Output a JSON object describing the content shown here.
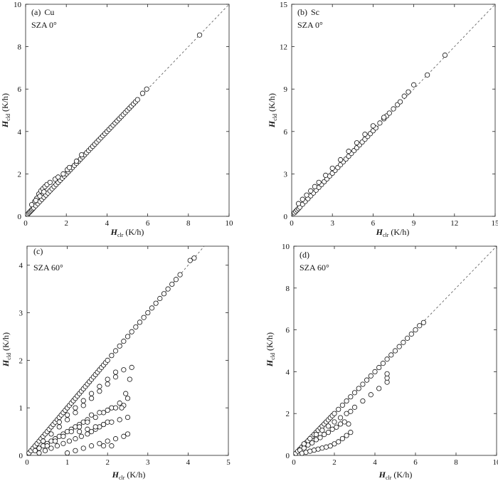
{
  "figure": {
    "panels": [
      {
        "id": "a",
        "label": "(a)",
        "cloud": "Cu",
        "sza_text": "SZA  0°",
        "xlabel": {
          "sym": "H",
          "sub": "clr",
          "unit": " (K/h)"
        },
        "ylabel": {
          "sym": "H",
          "sub": "cld",
          "unit": " (K/h)"
        }
      },
      {
        "id": "b",
        "label": "(b)",
        "cloud": "Sc",
        "sza_text": "SZA  0°",
        "xlabel": {
          "sym": "H",
          "sub": "clr",
          "unit": " (K/h)"
        },
        "ylabel": {
          "sym": "H",
          "sub": "cld",
          "unit": " (K/h)"
        }
      },
      {
        "id": "c",
        "label": "(c)",
        "cloud": "",
        "sza_text": "SZA  60°",
        "xlabel": {
          "sym": "H",
          "sub": "clr",
          "unit": " (K/h)"
        },
        "ylabel": {
          "sym": "H",
          "sub": "cld",
          "unit": " (K/h)"
        }
      },
      {
        "id": "d",
        "label": "(d)",
        "cloud": "",
        "sza_text": "SZA  60°",
        "xlabel": {
          "sym": "H",
          "sub": "clr",
          "unit": " (K/h)"
        },
        "ylabel": {
          "sym": "H",
          "sub": "cld",
          "unit": " (K/h)"
        }
      }
    ]
  },
  "chart_data": [
    {
      "type": "scatter",
      "title": "(a) Cu  SZA 0°",
      "xlabel": "Hclr (K/h)",
      "ylabel": "Hcld (K/h)",
      "xlim": [
        0,
        10
      ],
      "ylim": [
        0,
        10
      ],
      "xticks": [
        0,
        2,
        4,
        6,
        8,
        10
      ],
      "yticks": [
        0,
        2,
        4,
        6,
        8,
        10
      ],
      "reference_line": "1:1 dashed",
      "series": [
        {
          "x": [
            0.1,
            0.15,
            0.2,
            0.25,
            0.3,
            0.35,
            0.4,
            0.5,
            0.6,
            0.7,
            0.8,
            0.9,
            1.0,
            1.1,
            1.2,
            1.3,
            1.4,
            1.5,
            1.6,
            1.7,
            1.8,
            1.9,
            2.0,
            2.1,
            2.2,
            2.3,
            2.4,
            2.5,
            2.6,
            2.7,
            2.8,
            2.9,
            3.0,
            3.1,
            3.2,
            3.3,
            3.4,
            3.5,
            3.6,
            3.7,
            3.8,
            3.9,
            4.0,
            4.1,
            4.2,
            4.3,
            4.4,
            4.5,
            4.6,
            4.7,
            4.8,
            4.9,
            5.0,
            5.1,
            5.2,
            5.3,
            5.4,
            5.5,
            5.75,
            5.95,
            8.55,
            0.45,
            0.55,
            0.65,
            0.75,
            0.85,
            0.95,
            1.05,
            1.2,
            1.45,
            1.6,
            1.85,
            2.05,
            2.15,
            2.5,
            2.75,
            0.3,
            0.5,
            0.7,
            0.9
          ],
          "y": [
            0.1,
            0.15,
            0.2,
            0.25,
            0.3,
            0.35,
            0.4,
            0.5,
            0.6,
            0.7,
            0.8,
            0.9,
            1.0,
            1.1,
            1.2,
            1.3,
            1.4,
            1.5,
            1.6,
            1.7,
            1.8,
            1.9,
            2.0,
            2.1,
            2.2,
            2.3,
            2.4,
            2.5,
            2.6,
            2.7,
            2.8,
            2.9,
            3.0,
            3.1,
            3.2,
            3.3,
            3.4,
            3.5,
            3.6,
            3.7,
            3.8,
            3.9,
            4.0,
            4.1,
            4.2,
            4.3,
            4.4,
            4.5,
            4.6,
            4.7,
            4.8,
            4.9,
            5.0,
            5.1,
            5.2,
            5.3,
            5.4,
            5.5,
            5.8,
            6.0,
            8.55,
            0.7,
            0.85,
            1.05,
            1.2,
            1.3,
            1.4,
            1.5,
            1.6,
            1.75,
            1.85,
            2.0,
            2.2,
            2.3,
            2.6,
            2.9,
            0.55,
            0.75,
            0.95,
            1.15
          ]
        }
      ]
    },
    {
      "type": "scatter",
      "title": "(b) Sc  SZA 0°",
      "xlabel": "Hclr (K/h)",
      "ylabel": "Hcld (K/h)",
      "xlim": [
        0,
        15
      ],
      "ylim": [
        0,
        15
      ],
      "xticks": [
        0,
        3,
        6,
        9,
        12,
        15
      ],
      "yticks": [
        0,
        3,
        6,
        9,
        12,
        15
      ],
      "reference_line": "1:1 dashed",
      "series": [
        {
          "x": [
            0.2,
            0.3,
            0.4,
            0.5,
            0.6,
            0.8,
            1.0,
            1.2,
            1.4,
            1.6,
            1.8,
            2.0,
            2.2,
            2.4,
            2.6,
            2.8,
            3.0,
            3.2,
            3.4,
            3.6,
            3.8,
            4.0,
            4.2,
            4.4,
            4.6,
            4.8,
            5.0,
            5.2,
            5.4,
            5.6,
            5.8,
            6.0,
            6.2,
            6.5,
            6.8,
            7.0,
            7.2,
            7.5,
            7.8,
            8.0,
            8.3,
            8.6,
            9.0,
            10.0,
            11.3,
            0.5,
            0.8,
            1.1,
            1.4,
            1.7,
            2.0,
            2.5,
            3.0,
            3.6,
            4.2,
            4.8,
            5.4,
            6.0,
            6.8
          ],
          "y": [
            0.25,
            0.35,
            0.45,
            0.55,
            0.65,
            0.85,
            1.05,
            1.25,
            1.45,
            1.65,
            1.85,
            2.05,
            2.25,
            2.45,
            2.65,
            2.85,
            3.05,
            3.25,
            3.45,
            3.65,
            3.85,
            4.05,
            4.25,
            4.45,
            4.65,
            4.85,
            5.05,
            5.25,
            5.45,
            5.65,
            5.85,
            6.05,
            6.25,
            6.6,
            6.9,
            7.1,
            7.3,
            7.6,
            7.9,
            8.1,
            8.5,
            8.8,
            9.3,
            10.0,
            11.4,
            0.9,
            1.2,
            1.5,
            1.8,
            2.1,
            2.4,
            2.9,
            3.4,
            4.0,
            4.6,
            5.2,
            5.8,
            6.4,
            7.0
          ]
        }
      ]
    },
    {
      "type": "scatter",
      "title": "(c) SZA 60°",
      "xlabel": "Hclr (K/h)",
      "ylabel": "Hcld (K/h)",
      "xlim": [
        0,
        5
      ],
      "ylim": [
        0,
        4.4
      ],
      "xticks": [
        0,
        1,
        2,
        3,
        4,
        5
      ],
      "yticks": [
        0,
        1,
        2,
        3,
        4
      ],
      "reference_line": "1:1 dashed",
      "series": [
        {
          "x": [
            0.05,
            0.1,
            0.15,
            0.2,
            0.25,
            0.3,
            0.35,
            0.4,
            0.45,
            0.5,
            0.55,
            0.6,
            0.65,
            0.7,
            0.75,
            0.8,
            0.85,
            0.9,
            0.95,
            1.0,
            1.05,
            1.1,
            1.15,
            1.2,
            1.25,
            1.3,
            1.35,
            1.4,
            1.45,
            1.5,
            1.55,
            1.6,
            1.65,
            1.7,
            1.75,
            1.8,
            1.85,
            1.9,
            1.95,
            2.0,
            2.1,
            2.2,
            2.3,
            2.4,
            2.5,
            2.6,
            2.7,
            2.8,
            2.9,
            3.0,
            3.1,
            3.2,
            3.3,
            3.4,
            3.5,
            3.6,
            3.7,
            3.8,
            4.05,
            4.15,
            0.2,
            0.3,
            0.4,
            0.5,
            0.6,
            0.7,
            0.8,
            0.9,
            1.0,
            1.1,
            1.2,
            1.3,
            1.4,
            1.5,
            0.3,
            0.45,
            0.6,
            0.75,
            0.9,
            1.05,
            1.2,
            1.35,
            1.5,
            1.6,
            1.7,
            1.8,
            1.9,
            2.0,
            0.4,
            0.6,
            0.8,
            1.0,
            1.2,
            1.4,
            1.6,
            1.8,
            2.0,
            2.2,
            2.4,
            0.5,
            0.7,
            0.9,
            1.1,
            1.3,
            1.5,
            1.7,
            1.9,
            2.1,
            2.3,
            2.5,
            1.0,
            1.2,
            1.4,
            1.6,
            1.8,
            2.0,
            2.2,
            2.4,
            2.5,
            1.3,
            1.5,
            1.7,
            1.9,
            2.1,
            2.3,
            2.5,
            1.6,
            1.8,
            2.0,
            2.2,
            2.4,
            0.8,
            1.0,
            1.2,
            1.4,
            1.6,
            1.8,
            2.0,
            2.2,
            2.35,
            2.45,
            2.55,
            2.6,
            1.9,
            2.1
          ],
          "y": [
            0.05,
            0.1,
            0.15,
            0.2,
            0.25,
            0.3,
            0.35,
            0.4,
            0.45,
            0.5,
            0.55,
            0.6,
            0.65,
            0.7,
            0.75,
            0.8,
            0.85,
            0.9,
            0.95,
            1.0,
            1.05,
            1.1,
            1.15,
            1.2,
            1.25,
            1.3,
            1.35,
            1.4,
            1.45,
            1.5,
            1.55,
            1.6,
            1.65,
            1.7,
            1.75,
            1.8,
            1.85,
            1.9,
            1.95,
            2.0,
            2.1,
            2.2,
            2.3,
            2.4,
            2.5,
            2.6,
            2.7,
            2.8,
            2.9,
            3.0,
            3.1,
            3.2,
            3.3,
            3.4,
            3.5,
            3.6,
            3.7,
            3.8,
            4.1,
            4.15,
            0.1,
            0.15,
            0.2,
            0.25,
            0.3,
            0.35,
            0.4,
            0.45,
            0.5,
            0.55,
            0.6,
            0.65,
            0.7,
            0.75,
            0.05,
            0.1,
            0.15,
            0.2,
            0.25,
            0.3,
            0.35,
            0.4,
            0.45,
            0.5,
            0.55,
            0.6,
            0.65,
            0.7,
            0.3,
            0.45,
            0.6,
            0.75,
            0.9,
            1.05,
            1.2,
            1.35,
            1.5,
            1.65,
            1.8,
            0.2,
            0.3,
            0.4,
            0.5,
            0.6,
            0.7,
            0.8,
            0.9,
            1.0,
            1.1,
            1.2,
            0.05,
            0.1,
            0.15,
            0.2,
            0.25,
            0.3,
            0.35,
            0.4,
            0.45,
            0.5,
            0.55,
            0.6,
            0.65,
            0.7,
            0.75,
            0.8,
            0.85,
            0.9,
            0.95,
            1.0,
            1.05,
            0.7,
            0.85,
            1.0,
            1.15,
            1.3,
            1.45,
            1.6,
            1.75,
            1.0,
            1.3,
            1.6,
            1.85,
            0.2,
            0.2
          ]
        }
      ]
    },
    {
      "type": "scatter",
      "title": "(d) SZA 60°",
      "xlabel": "Hclr (K/h)",
      "ylabel": "Hcld (K/h)",
      "xlim": [
        0,
        10
      ],
      "ylim": [
        0,
        10
      ],
      "xticks": [
        0,
        2,
        4,
        6,
        8,
        10
      ],
      "yticks": [
        0,
        2,
        4,
        6,
        8,
        10
      ],
      "reference_line": "1:1 dashed",
      "series": [
        {
          "x": [
            0.1,
            0.2,
            0.3,
            0.4,
            0.5,
            0.6,
            0.7,
            0.8,
            0.9,
            1.0,
            1.1,
            1.2,
            1.3,
            1.4,
            1.5,
            1.6,
            1.7,
            1.8,
            1.9,
            2.0,
            2.2,
            2.4,
            2.6,
            2.8,
            3.0,
            3.2,
            3.4,
            3.6,
            3.8,
            4.0,
            4.2,
            4.4,
            4.6,
            4.8,
            5.0,
            5.2,
            5.4,
            5.6,
            5.8,
            6.0,
            6.2,
            6.4,
            0.3,
            0.5,
            0.7,
            0.9,
            1.1,
            1.3,
            1.5,
            1.7,
            1.9,
            2.1,
            2.3,
            2.5,
            2.7,
            0.4,
            0.6,
            0.8,
            1.0,
            1.2,
            1.4,
            1.6,
            1.8,
            2.0,
            2.2,
            2.4,
            2.6,
            2.8,
            0.5,
            0.8,
            1.1,
            1.4,
            1.7,
            2.0,
            2.3,
            2.6,
            2.8,
            3.0,
            3.4,
            3.8,
            4.2,
            4.6,
            4.6,
            4.6
          ],
          "y": [
            0.1,
            0.2,
            0.3,
            0.4,
            0.5,
            0.6,
            0.7,
            0.8,
            0.9,
            1.0,
            1.1,
            1.2,
            1.3,
            1.4,
            1.5,
            1.6,
            1.7,
            1.8,
            1.9,
            2.0,
            2.2,
            2.4,
            2.6,
            2.8,
            3.0,
            3.2,
            3.4,
            3.6,
            3.8,
            4.0,
            4.2,
            4.4,
            4.6,
            4.8,
            5.0,
            5.2,
            5.4,
            5.6,
            5.8,
            6.0,
            6.2,
            6.35,
            0.25,
            0.35,
            0.5,
            0.6,
            0.75,
            0.85,
            1.0,
            1.1,
            1.25,
            1.35,
            1.5,
            1.6,
            1.5,
            0.1,
            0.15,
            0.2,
            0.25,
            0.3,
            0.35,
            0.4,
            0.45,
            0.55,
            0.65,
            0.8,
            0.95,
            1.1,
            0.55,
            0.8,
            1.0,
            1.2,
            1.4,
            1.6,
            1.8,
            2.0,
            2.1,
            2.3,
            2.6,
            2.9,
            3.2,
            3.5,
            3.7,
            3.9
          ]
        }
      ]
    }
  ]
}
